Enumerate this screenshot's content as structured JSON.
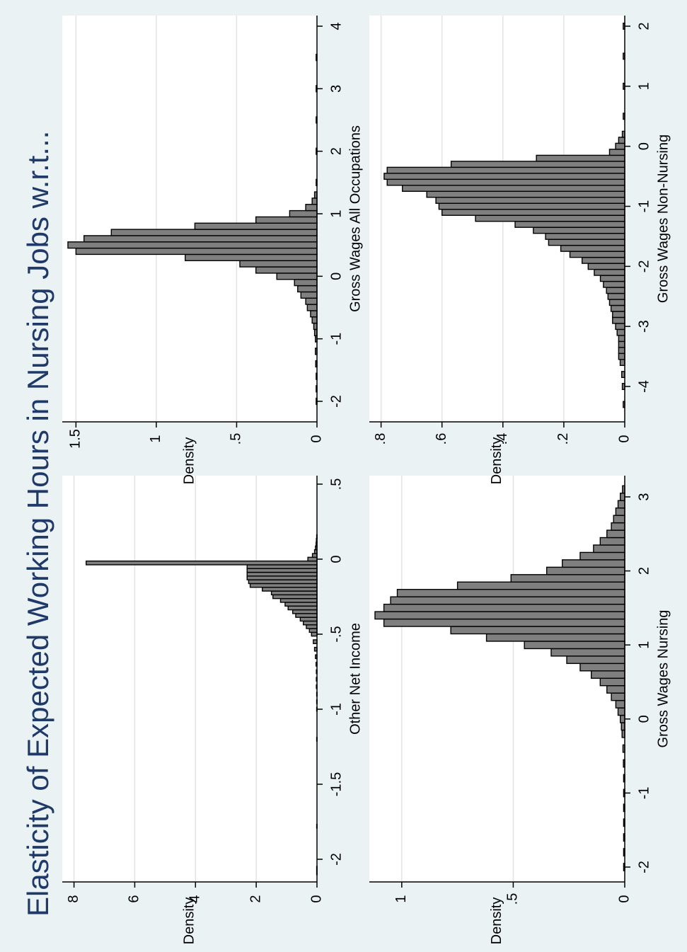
{
  "figure": {
    "title": "Elasticity of Expected Working Hours in Nursing Jobs w.r.t...",
    "colors": {
      "outer": "#eaf2f3",
      "plot_bg": "#ffffff",
      "bar_fill": "#7f7f7f",
      "bar_stroke": "#000000",
      "grid": "#e3e3e3"
    }
  },
  "chart_data": [
    {
      "id": "panel-tl",
      "type": "bar",
      "xlabel": "Other Net Income",
      "ylabel": "Density",
      "xlim": [
        -2.15,
        0.55
      ],
      "ylim": [
        0,
        8.2
      ],
      "xticks": [
        -2,
        -1.5,
        -1,
        -0.5,
        0,
        0.5
      ],
      "xtick_labels": [
        "-2",
        "-1.5",
        "-1",
        "-.5",
        "0",
        ".5"
      ],
      "yticks": [
        0,
        2,
        4,
        6,
        8
      ],
      "ytick_labels": [
        "0",
        "2",
        "4",
        "6",
        "8"
      ],
      "grid": true,
      "bin_width": 0.025,
      "x": [
        -2.09,
        -2.06,
        -1.78,
        -1.2,
        -1.0,
        -0.95,
        -0.9,
        -0.85,
        -0.8,
        -0.75,
        -0.7,
        -0.65,
        -0.6,
        -0.55,
        -0.5,
        -0.475,
        -0.45,
        -0.425,
        -0.4,
        -0.375,
        -0.35,
        -0.325,
        -0.3,
        -0.275,
        -0.25,
        -0.225,
        -0.2,
        -0.175,
        -0.15,
        -0.125,
        -0.1,
        -0.075,
        -0.05,
        -0.025,
        0.0,
        0.025,
        0.05,
        0.075,
        0.1,
        0.125,
        0.15
      ],
      "values": [
        0.01,
        0.01,
        0.01,
        0.01,
        0.01,
        0.01,
        0.01,
        0.02,
        0.02,
        0.02,
        0.03,
        0.05,
        0.08,
        0.12,
        0.18,
        0.25,
        0.35,
        0.45,
        0.55,
        0.7,
        0.8,
        0.95,
        1.05,
        1.2,
        1.45,
        1.5,
        1.8,
        2.2,
        2.25,
        2.3,
        2.3,
        2.3,
        2.3,
        7.6,
        0.3,
        0.15,
        0.08,
        0.05,
        0.03,
        0.02,
        0.01
      ]
    },
    {
      "id": "panel-tr",
      "type": "bar",
      "xlabel": "Gross Wages All Occupations",
      "ylabel": "Density",
      "xlim": [
        -2.3,
        4.2
      ],
      "ylim": [
        0,
        1.55
      ],
      "xticks": [
        -2,
        -1,
        0,
        1,
        2,
        3,
        4
      ],
      "xtick_labels": [
        "-2",
        "-1",
        "0",
        "1",
        "2",
        "3",
        "4"
      ],
      "yticks": [
        0,
        0.5,
        1,
        1.5
      ],
      "ytick_labels": [
        "0",
        ".5",
        "1",
        "1.5"
      ],
      "grid": true,
      "bin_width": 0.1,
      "x": [
        -2.0,
        -1.8,
        -1.6,
        -1.4,
        -1.2,
        -1.0,
        -0.9,
        -0.8,
        -0.7,
        -0.6,
        -0.5,
        -0.4,
        -0.3,
        -0.2,
        -0.1,
        0.0,
        0.1,
        0.2,
        0.3,
        0.4,
        0.5,
        0.6,
        0.7,
        0.8,
        0.9,
        1.0,
        1.1,
        1.2,
        1.3,
        1.5,
        2.0,
        2.5,
        3.0,
        3.5
      ],
      "values": [
        0.005,
        0.005,
        0.005,
        0.008,
        0.01,
        0.01,
        0.015,
        0.02,
        0.03,
        0.04,
        0.06,
        0.07,
        0.1,
        0.12,
        0.14,
        0.25,
        0.38,
        0.48,
        0.82,
        1.5,
        1.55,
        1.45,
        1.28,
        0.76,
        0.38,
        0.17,
        0.07,
        0.03,
        0.015,
        0.005,
        0.005,
        0.005,
        0.005,
        0.005
      ]
    },
    {
      "id": "panel-bl",
      "type": "bar",
      "xlabel": "Gross Wages Nursing",
      "ylabel": "Density",
      "xlim": [
        -2.2,
        3.2
      ],
      "ylim": [
        0,
        1.12
      ],
      "xticks": [
        -2,
        -1,
        0,
        1,
        2,
        3
      ],
      "xtick_labels": [
        "-2",
        "-1",
        "0",
        "1",
        "2",
        "3"
      ],
      "yticks": [
        0,
        0.5,
        1
      ],
      "ytick_labels": [
        "0",
        ".5",
        "1"
      ],
      "grid": true,
      "bin_width": 0.1,
      "x": [
        -2.0,
        -1.8,
        -1.6,
        -1.4,
        -1.2,
        -1.0,
        -0.8,
        -0.6,
        -0.4,
        -0.2,
        -0.1,
        0.0,
        0.1,
        0.2,
        0.3,
        0.4,
        0.5,
        0.6,
        0.7,
        0.8,
        0.9,
        1.0,
        1.1,
        1.2,
        1.3,
        1.4,
        1.5,
        1.6,
        1.7,
        1.8,
        1.9,
        2.0,
        2.1,
        2.2,
        2.3,
        2.4,
        2.5,
        2.6,
        2.7,
        2.8,
        2.9,
        3.0,
        3.1
      ],
      "values": [
        0.005,
        0.005,
        0.005,
        0.005,
        0.005,
        0.005,
        0.005,
        0.006,
        0.008,
        0.012,
        0.015,
        0.02,
        0.03,
        0.04,
        0.06,
        0.08,
        0.11,
        0.15,
        0.2,
        0.26,
        0.33,
        0.45,
        0.62,
        0.78,
        1.08,
        1.12,
        1.08,
        1.05,
        1.02,
        0.75,
        0.51,
        0.35,
        0.28,
        0.2,
        0.14,
        0.11,
        0.08,
        0.06,
        0.05,
        0.04,
        0.03,
        0.02,
        0.01
      ]
    },
    {
      "id": "panel-br",
      "type": "bar",
      "xlabel": "Gross Wages Non-Nursing",
      "ylabel": "Density",
      "xlim": [
        -4.45,
        2.2
      ],
      "ylim": [
        0,
        0.82
      ],
      "xticks": [
        -4,
        -3,
        -2,
        -1,
        0,
        1,
        2
      ],
      "xtick_labels": [
        "-4",
        "-3",
        "-2",
        "-1",
        "0",
        "1",
        "2"
      ],
      "yticks": [
        0,
        0.2,
        0.4,
        0.6,
        0.8
      ],
      "ytick_labels": [
        "0",
        ".2",
        ".4",
        ".6",
        ".8"
      ],
      "grid": true,
      "bin_width": 0.1,
      "x": [
        -4.3,
        -4.0,
        -3.8,
        -3.6,
        -3.5,
        -3.4,
        -3.3,
        -3.2,
        -3.1,
        -3.0,
        -2.9,
        -2.8,
        -2.7,
        -2.6,
        -2.5,
        -2.4,
        -2.3,
        -2.2,
        -2.1,
        -2.0,
        -1.9,
        -1.8,
        -1.7,
        -1.6,
        -1.5,
        -1.4,
        -1.3,
        -1.2,
        -1.1,
        -1.0,
        -0.9,
        -0.8,
        -0.7,
        -0.6,
        -0.5,
        -0.4,
        -0.3,
        -0.2,
        -0.1,
        0.0,
        0.1,
        0.2,
        0.5,
        1.0,
        1.5,
        2.0
      ],
      "values": [
        0.005,
        0.008,
        0.01,
        0.015,
        0.02,
        0.02,
        0.02,
        0.02,
        0.025,
        0.03,
        0.04,
        0.04,
        0.045,
        0.05,
        0.055,
        0.06,
        0.07,
        0.08,
        0.1,
        0.12,
        0.14,
        0.18,
        0.21,
        0.25,
        0.26,
        0.3,
        0.36,
        0.49,
        0.6,
        0.61,
        0.62,
        0.65,
        0.73,
        0.78,
        0.79,
        0.78,
        0.57,
        0.29,
        0.05,
        0.03,
        0.02,
        0.008,
        0.005,
        0.005,
        0.005,
        0.005
      ]
    }
  ]
}
